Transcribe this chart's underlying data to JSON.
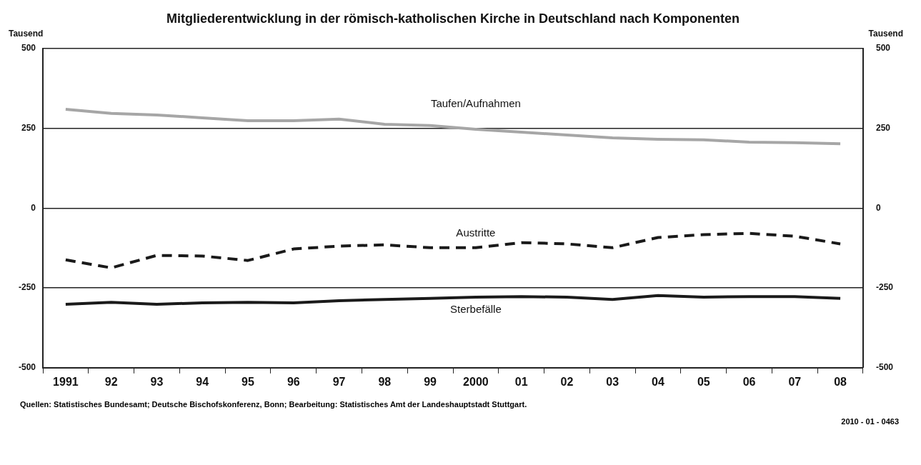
{
  "chart_data": {
    "type": "line",
    "title": "Mitgliederentwicklung in der römisch-katholischen Kirche in Deutschland nach Komponenten",
    "ylabel": "Tausend",
    "y2label": "Tausend",
    "categories": [
      "1991",
      "92",
      "93",
      "94",
      "95",
      "96",
      "97",
      "98",
      "99",
      "2000",
      "01",
      "02",
      "03",
      "04",
      "05",
      "06",
      "07",
      "08"
    ],
    "series": [
      {
        "name": "Taufen/Aufnahmen",
        "color": "#a6a6a6",
        "line_style": "solid",
        "values": [
          310,
          297,
          292,
          283,
          274,
          274,
          279,
          263,
          259,
          247,
          238,
          229,
          220,
          216,
          214,
          207,
          205,
          202
        ]
      },
      {
        "name": "Austritte",
        "color": "#1a1a1a",
        "line_style": "dashed",
        "values": [
          -162,
          -187,
          -148,
          -150,
          -164,
          -128,
          -119,
          -115,
          -124,
          -124,
          -108,
          -112,
          -124,
          -92,
          -83,
          -79,
          -88,
          -112
        ]
      },
      {
        "name": "Sterbefälle",
        "color": "#1a1a1a",
        "line_style": "solid",
        "values": [
          -301,
          -295,
          -301,
          -297,
          -295,
          -297,
          -290,
          -286,
          -283,
          -279,
          -277,
          -279,
          -286,
          -274,
          -279,
          -277,
          -277,
          -283
        ]
      }
    ],
    "ylim": [
      -500,
      500
    ],
    "yticks": [
      -500,
      -250,
      0,
      250,
      500
    ],
    "y2lim": [
      -500,
      500
    ],
    "y2ticks": [
      -500,
      -250,
      0,
      250,
      500
    ],
    "grid": "y",
    "legend": false,
    "marker": "none",
    "annotations": [
      "Quellen: Statistisches Bundesamt; Deutsche Bischofskonferenz, Bonn; Bearbeitung: Statistisches Amt der Landeshauptstadt Stuttgart.",
      "2010 - 01 - 0463"
    ]
  }
}
